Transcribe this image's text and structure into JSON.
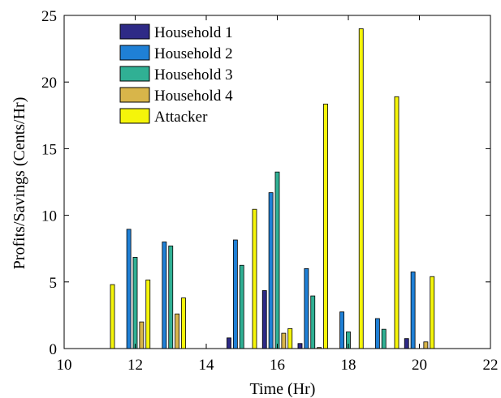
{
  "chart_data": {
    "type": "bar",
    "title": "",
    "xlabel": "Time (Hr)",
    "ylabel": "Profits/Savings (Cents/Hr)",
    "xlim": [
      10,
      22
    ],
    "ylim": [
      0,
      25
    ],
    "xticks": [
      10,
      12,
      14,
      16,
      18,
      20,
      22
    ],
    "yticks": [
      0,
      5,
      10,
      15,
      20,
      25
    ],
    "grid": false,
    "legend_position": "top-left",
    "x": [
      11,
      12,
      13,
      14,
      15,
      16,
      17,
      18,
      19,
      20,
      21
    ],
    "series": [
      {
        "name": "Household 1",
        "color": "#2e2a86",
        "values": [
          0,
          0,
          0,
          0,
          0.8,
          4.35,
          0.38,
          0,
          0,
          0.75,
          0
        ]
      },
      {
        "name": "Household 2",
        "color": "#1f80d6",
        "values": [
          0,
          8.95,
          8.0,
          0,
          8.15,
          11.7,
          6.0,
          2.75,
          2.25,
          5.75,
          0
        ]
      },
      {
        "name": "Household 3",
        "color": "#30b094",
        "values": [
          0,
          6.85,
          7.7,
          0,
          6.25,
          13.25,
          3.95,
          1.25,
          1.45,
          0,
          0
        ]
      },
      {
        "name": "Household 4",
        "color": "#d8b54a",
        "values": [
          0,
          2.0,
          2.6,
          0,
          0,
          1.15,
          0.08,
          0,
          0,
          0.5,
          0
        ]
      },
      {
        "name": "Attacker",
        "color": "#f5f50a",
        "values": [
          4.8,
          5.15,
          3.8,
          0,
          10.45,
          1.5,
          18.35,
          24.0,
          18.9,
          5.4,
          0
        ]
      }
    ]
  }
}
